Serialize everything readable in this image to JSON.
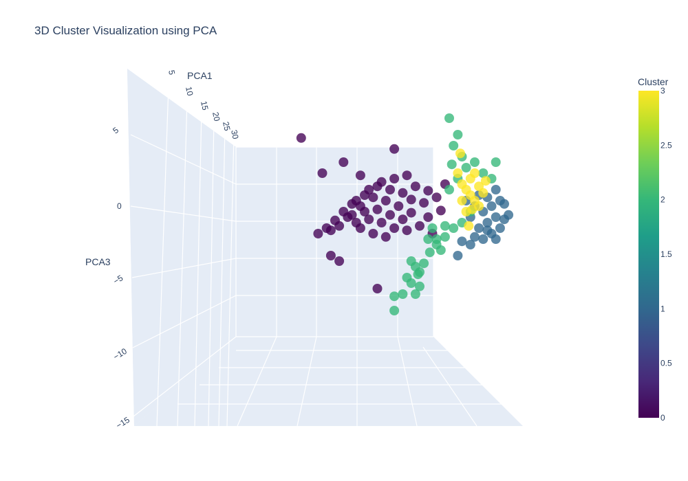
{
  "chart_data": {
    "type": "scatter",
    "dimensions": 3,
    "title": "3D Cluster Visualization using PCA",
    "xlabel": "PCA1",
    "zlabel": "PCA3",
    "x_ticks": [
      "5",
      "10",
      "15",
      "20",
      "25",
      "30"
    ],
    "z_ticks": [
      "5",
      "0",
      "−5",
      "−10",
      "−15"
    ],
    "colorbar": {
      "title": "Cluster",
      "range": [
        0,
        3
      ],
      "ticks": [
        "0",
        "0.5",
        "1",
        "1.5",
        "2",
        "2.5",
        "3"
      ],
      "colorscale": "Viridis"
    },
    "cluster_colors": [
      "#440154",
      "#31688e",
      "#35b779",
      "#fde725"
    ],
    "series": [
      {
        "cluster": 0,
        "points": [
          [
            -12,
            -2.5
          ],
          [
            -11,
            -2
          ],
          [
            -10.5,
            -2.2
          ],
          [
            -10,
            -1.3
          ],
          [
            -9.5,
            -1.8
          ],
          [
            -9,
            -0.5
          ],
          [
            -8.5,
            -1
          ],
          [
            -8,
            0.2
          ],
          [
            -8,
            -0.8
          ],
          [
            -7.5,
            0.5
          ],
          [
            -7.5,
            -1.5
          ],
          [
            -7,
            0
          ],
          [
            -7,
            -2
          ],
          [
            -6.5,
            1
          ],
          [
            -6.5,
            -0.5
          ],
          [
            -6,
            1.5
          ],
          [
            -6,
            -1.2
          ],
          [
            -5.5,
            0.8
          ],
          [
            -5.5,
            -2.5
          ],
          [
            -5,
            1.8
          ],
          [
            -5,
            -0.3
          ],
          [
            -4.5,
            2.2
          ],
          [
            -4.5,
            -1.5
          ],
          [
            -4,
            0.5
          ],
          [
            -4,
            -2.8
          ],
          [
            -3.5,
            1.5
          ],
          [
            -3.5,
            -0.8
          ],
          [
            -3,
            2.5
          ],
          [
            -3,
            -2
          ],
          [
            -2.5,
            0
          ],
          [
            -2,
            1.2
          ],
          [
            -2,
            -1.2
          ],
          [
            -1.5,
            2.8
          ],
          [
            -1.5,
            -2.2
          ],
          [
            -1,
            0.6
          ],
          [
            -1,
            -0.6
          ],
          [
            -0.5,
            1.8
          ],
          [
            0,
            -1.8
          ],
          [
            0.5,
            0.3
          ],
          [
            1,
            1.4
          ],
          [
            1,
            -1
          ],
          [
            1.5,
            -2.5
          ],
          [
            2,
            0.8
          ],
          [
            2.5,
            -0.4
          ],
          [
            3,
            2
          ],
          [
            -11.5,
            3
          ],
          [
            -10.5,
            -4.5
          ],
          [
            -9,
            4
          ],
          [
            -3,
            5.2
          ],
          [
            -5,
            -7.5
          ],
          [
            -14,
            6.2
          ],
          [
            -9.5,
            -5
          ],
          [
            -7,
            2.8
          ]
        ]
      },
      {
        "cluster": 1,
        "points": [
          [
            5.5,
            0.5
          ],
          [
            6,
            -1
          ],
          [
            6.5,
            0
          ],
          [
            7,
            -2
          ],
          [
            7,
            1
          ],
          [
            7.5,
            -0.5
          ],
          [
            8,
            -1.5
          ],
          [
            8,
            0.8
          ],
          [
            8.5,
            -2.5
          ],
          [
            8.5,
            0
          ],
          [
            9,
            -1
          ],
          [
            9,
            1.5
          ],
          [
            9.5,
            -2
          ],
          [
            9.5,
            0.5
          ],
          [
            10,
            -1.2
          ],
          [
            10,
            0.2
          ],
          [
            10.5,
            -0.8
          ],
          [
            7.5,
            -3
          ],
          [
            6.5,
            -2.8
          ],
          [
            5,
            -3.2
          ],
          [
            9,
            -3
          ],
          [
            4.5,
            -4.5
          ],
          [
            8,
            -2.2
          ],
          [
            6,
            -3.5
          ]
        ]
      },
      {
        "cluster": 2,
        "points": [
          [
            -1,
            -5
          ],
          [
            -0.5,
            -5.5
          ],
          [
            0,
            -6
          ],
          [
            -1.5,
            -6.5
          ],
          [
            -1,
            -7
          ],
          [
            0.5,
            -5.2
          ],
          [
            -2,
            -8
          ],
          [
            -3,
            -9.5
          ],
          [
            -3,
            -8.2
          ],
          [
            -0.5,
            -8
          ],
          [
            0,
            -7.3
          ],
          [
            1,
            -3
          ],
          [
            2,
            -3.5
          ],
          [
            3,
            -2.8
          ],
          [
            4,
            -2
          ],
          [
            5,
            -1.5
          ],
          [
            3.5,
            1.5
          ],
          [
            4.5,
            2.5
          ],
          [
            5.5,
            3.5
          ],
          [
            6.5,
            4
          ],
          [
            7.5,
            3
          ],
          [
            5,
            4.5
          ],
          [
            4,
            5.5
          ],
          [
            4.5,
            6.5
          ],
          [
            3.5,
            8
          ],
          [
            8.5,
            2.5
          ],
          [
            9,
            4
          ],
          [
            3,
            -1.8
          ],
          [
            2.5,
            -4
          ],
          [
            1.5,
            -2
          ],
          [
            6,
            -0.5
          ],
          [
            3.8,
            3.8
          ],
          [
            2,
            -3
          ],
          [
            -0.2,
            -6.2
          ],
          [
            1.2,
            -4.2
          ]
        ]
      },
      {
        "cluster": 3,
        "points": [
          [
            4.5,
            3
          ],
          [
            5,
            2
          ],
          [
            5.5,
            1.5
          ],
          [
            6,
            1
          ],
          [
            6,
            2.5
          ],
          [
            6.5,
            0.5
          ],
          [
            7,
            1.8
          ],
          [
            7,
            0
          ],
          [
            5,
            0.5
          ],
          [
            5.5,
            -0.5
          ],
          [
            6.5,
            3
          ],
          [
            7.5,
            1.2
          ],
          [
            5.8,
            -1.8
          ],
          [
            4.8,
            4.8
          ],
          [
            6.2,
            -0.3
          ],
          [
            7.8,
            2.3
          ]
        ]
      }
    ]
  }
}
